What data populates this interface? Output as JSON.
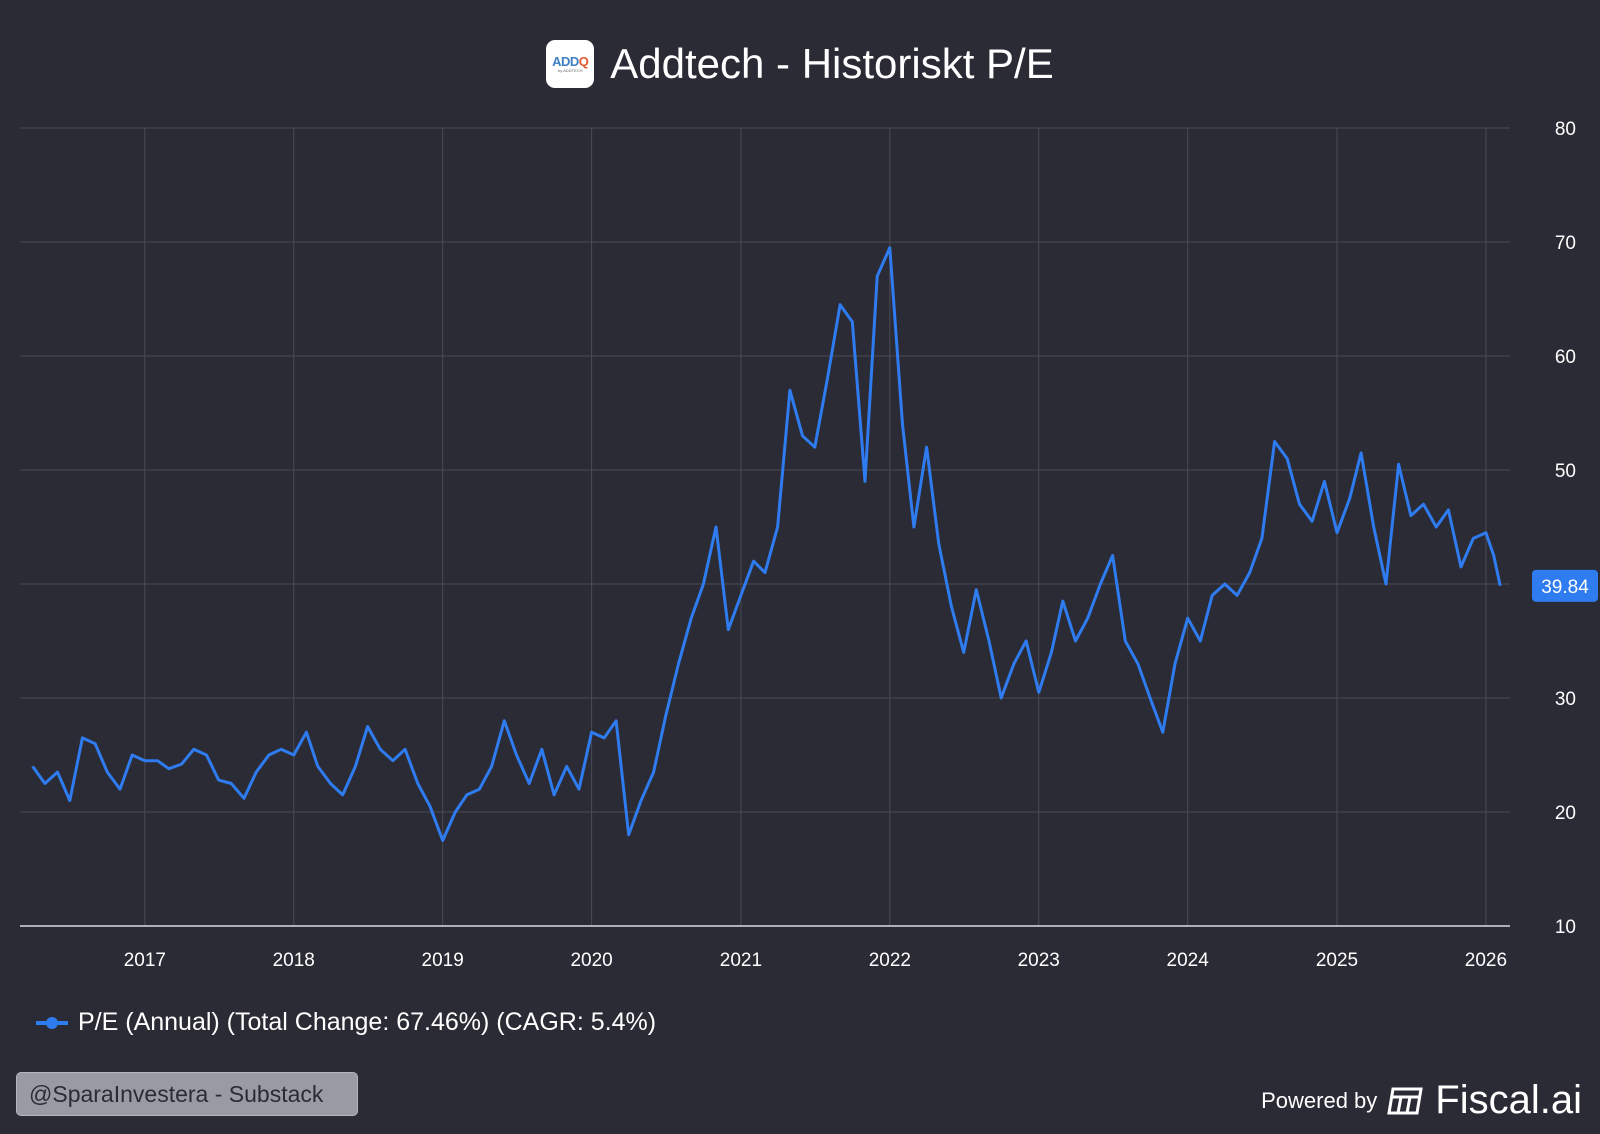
{
  "header": {
    "title": "Addtech - Historiskt P/E",
    "logo_text": "ADDQ",
    "logo_sub": "by ADDTECH"
  },
  "legend": {
    "label": "P/E (Annual) (Total Change: 67.46%) (CAGR: 5.4%)"
  },
  "watermark": "@SparaInvestera - Substack",
  "footer": {
    "powered_by": "Powered by",
    "brand": "Fiscal.ai"
  },
  "colors": {
    "background": "#2a2b35",
    "series": "#2f7bf0",
    "grid": "#4a4b55"
  },
  "chart_data": {
    "type": "line",
    "title": "Addtech - Historiskt P/E",
    "xlabel": "",
    "ylabel": "",
    "ylim": [
      10,
      80
    ],
    "xlim": [
      "2016-03-01",
      "2026-03-01"
    ],
    "grid": true,
    "legend_position": "bottom-left",
    "x_ticks": [
      "2017",
      "2018",
      "2019",
      "2020",
      "2021",
      "2022",
      "2023",
      "2024",
      "2025",
      "2026"
    ],
    "y_ticks": [
      10,
      20,
      30,
      40,
      50,
      60,
      70,
      80
    ],
    "last_value_label": "39.84",
    "series": [
      {
        "name": "P/E (Annual) (Total Change: 67.46%) (CAGR: 5.4%)",
        "points": [
          [
            "2016-04-01",
            24.0
          ],
          [
            "2016-05-01",
            22.5
          ],
          [
            "2016-06-01",
            23.5
          ],
          [
            "2016-07-01",
            21.0
          ],
          [
            "2016-08-01",
            26.5
          ],
          [
            "2016-09-01",
            26.0
          ],
          [
            "2016-10-01",
            23.5
          ],
          [
            "2016-11-01",
            22.0
          ],
          [
            "2016-12-01",
            25.0
          ],
          [
            "2017-01-01",
            24.5
          ],
          [
            "2017-02-01",
            24.5
          ],
          [
            "2017-03-01",
            23.8
          ],
          [
            "2017-04-01",
            24.2
          ],
          [
            "2017-05-01",
            25.5
          ],
          [
            "2017-06-01",
            25.0
          ],
          [
            "2017-07-01",
            22.8
          ],
          [
            "2017-08-01",
            22.5
          ],
          [
            "2017-09-01",
            21.2
          ],
          [
            "2017-10-01",
            23.5
          ],
          [
            "2017-11-01",
            25.0
          ],
          [
            "2017-12-01",
            25.5
          ],
          [
            "2018-01-01",
            25.0
          ],
          [
            "2018-02-01",
            27.0
          ],
          [
            "2018-03-01",
            24.0
          ],
          [
            "2018-04-01",
            22.5
          ],
          [
            "2018-05-01",
            21.5
          ],
          [
            "2018-06-01",
            24.0
          ],
          [
            "2018-07-01",
            27.5
          ],
          [
            "2018-08-01",
            25.5
          ],
          [
            "2018-09-01",
            24.5
          ],
          [
            "2018-10-01",
            25.5
          ],
          [
            "2018-11-01",
            22.5
          ],
          [
            "2018-12-01",
            20.5
          ],
          [
            "2019-01-01",
            17.5
          ],
          [
            "2019-02-01",
            20.0
          ],
          [
            "2019-03-01",
            21.5
          ],
          [
            "2019-04-01",
            22.0
          ],
          [
            "2019-05-01",
            24.0
          ],
          [
            "2019-06-01",
            28.0
          ],
          [
            "2019-07-01",
            25.0
          ],
          [
            "2019-08-01",
            22.5
          ],
          [
            "2019-09-01",
            25.5
          ],
          [
            "2019-10-01",
            21.5
          ],
          [
            "2019-11-01",
            24.0
          ],
          [
            "2019-12-01",
            22.0
          ],
          [
            "2020-01-01",
            27.0
          ],
          [
            "2020-02-01",
            26.5
          ],
          [
            "2020-03-01",
            28.0
          ],
          [
            "2020-04-01",
            18.0
          ],
          [
            "2020-05-01",
            21.0
          ],
          [
            "2020-06-01",
            23.5
          ],
          [
            "2020-07-01",
            28.5
          ],
          [
            "2020-08-01",
            33.0
          ],
          [
            "2020-09-01",
            37.0
          ],
          [
            "2020-10-01",
            40.0
          ],
          [
            "2020-11-01",
            45.0
          ],
          [
            "2020-12-01",
            36.0
          ],
          [
            "2021-01-01",
            39.0
          ],
          [
            "2021-02-01",
            42.0
          ],
          [
            "2021-03-01",
            41.0
          ],
          [
            "2021-04-01",
            45.0
          ],
          [
            "2021-05-01",
            57.0
          ],
          [
            "2021-06-01",
            53.0
          ],
          [
            "2021-07-01",
            52.0
          ],
          [
            "2021-08-01",
            58.0
          ],
          [
            "2021-09-01",
            64.5
          ],
          [
            "2021-10-01",
            63.0
          ],
          [
            "2021-11-01",
            49.0
          ],
          [
            "2021-12-01",
            67.0
          ],
          [
            "2022-01-01",
            69.5
          ],
          [
            "2022-02-01",
            54.0
          ],
          [
            "2022-03-01",
            45.0
          ],
          [
            "2022-04-01",
            52.0
          ],
          [
            "2022-05-01",
            43.5
          ],
          [
            "2022-06-01",
            38.0
          ],
          [
            "2022-07-01",
            34.0
          ],
          [
            "2022-08-01",
            39.5
          ],
          [
            "2022-09-01",
            35.0
          ],
          [
            "2022-10-01",
            30.0
          ],
          [
            "2022-11-01",
            33.0
          ],
          [
            "2022-12-01",
            35.0
          ],
          [
            "2023-01-01",
            30.5
          ],
          [
            "2023-02-01",
            34.0
          ],
          [
            "2023-03-01",
            38.5
          ],
          [
            "2023-04-01",
            35.0
          ],
          [
            "2023-05-01",
            37.0
          ],
          [
            "2023-06-01",
            40.0
          ],
          [
            "2023-07-01",
            42.5
          ],
          [
            "2023-08-01",
            35.0
          ],
          [
            "2023-09-01",
            33.0
          ],
          [
            "2023-10-01",
            30.0
          ],
          [
            "2023-11-01",
            27.0
          ],
          [
            "2023-12-01",
            33.0
          ],
          [
            "2024-01-01",
            37.0
          ],
          [
            "2024-02-01",
            35.0
          ],
          [
            "2024-03-01",
            39.0
          ],
          [
            "2024-04-01",
            40.0
          ],
          [
            "2024-05-01",
            39.0
          ],
          [
            "2024-06-01",
            41.0
          ],
          [
            "2024-07-01",
            44.0
          ],
          [
            "2024-08-01",
            52.5
          ],
          [
            "2024-09-01",
            51.0
          ],
          [
            "2024-10-01",
            47.0
          ],
          [
            "2024-11-01",
            45.5
          ],
          [
            "2024-12-01",
            49.0
          ],
          [
            "2025-01-01",
            44.5
          ],
          [
            "2025-02-01",
            47.5
          ],
          [
            "2025-03-01",
            51.5
          ],
          [
            "2025-04-01",
            45.0
          ],
          [
            "2025-05-01",
            40.0
          ],
          [
            "2025-06-01",
            50.5
          ],
          [
            "2025-07-01",
            46.0
          ],
          [
            "2025-08-01",
            47.0
          ],
          [
            "2025-09-01",
            45.0
          ],
          [
            "2025-10-01",
            46.5
          ],
          [
            "2025-11-01",
            41.5
          ],
          [
            "2025-12-01",
            44.0
          ],
          [
            "2026-01-01",
            44.5
          ],
          [
            "2026-01-20",
            42.5
          ],
          [
            "2026-02-05",
            39.84
          ]
        ]
      }
    ]
  }
}
